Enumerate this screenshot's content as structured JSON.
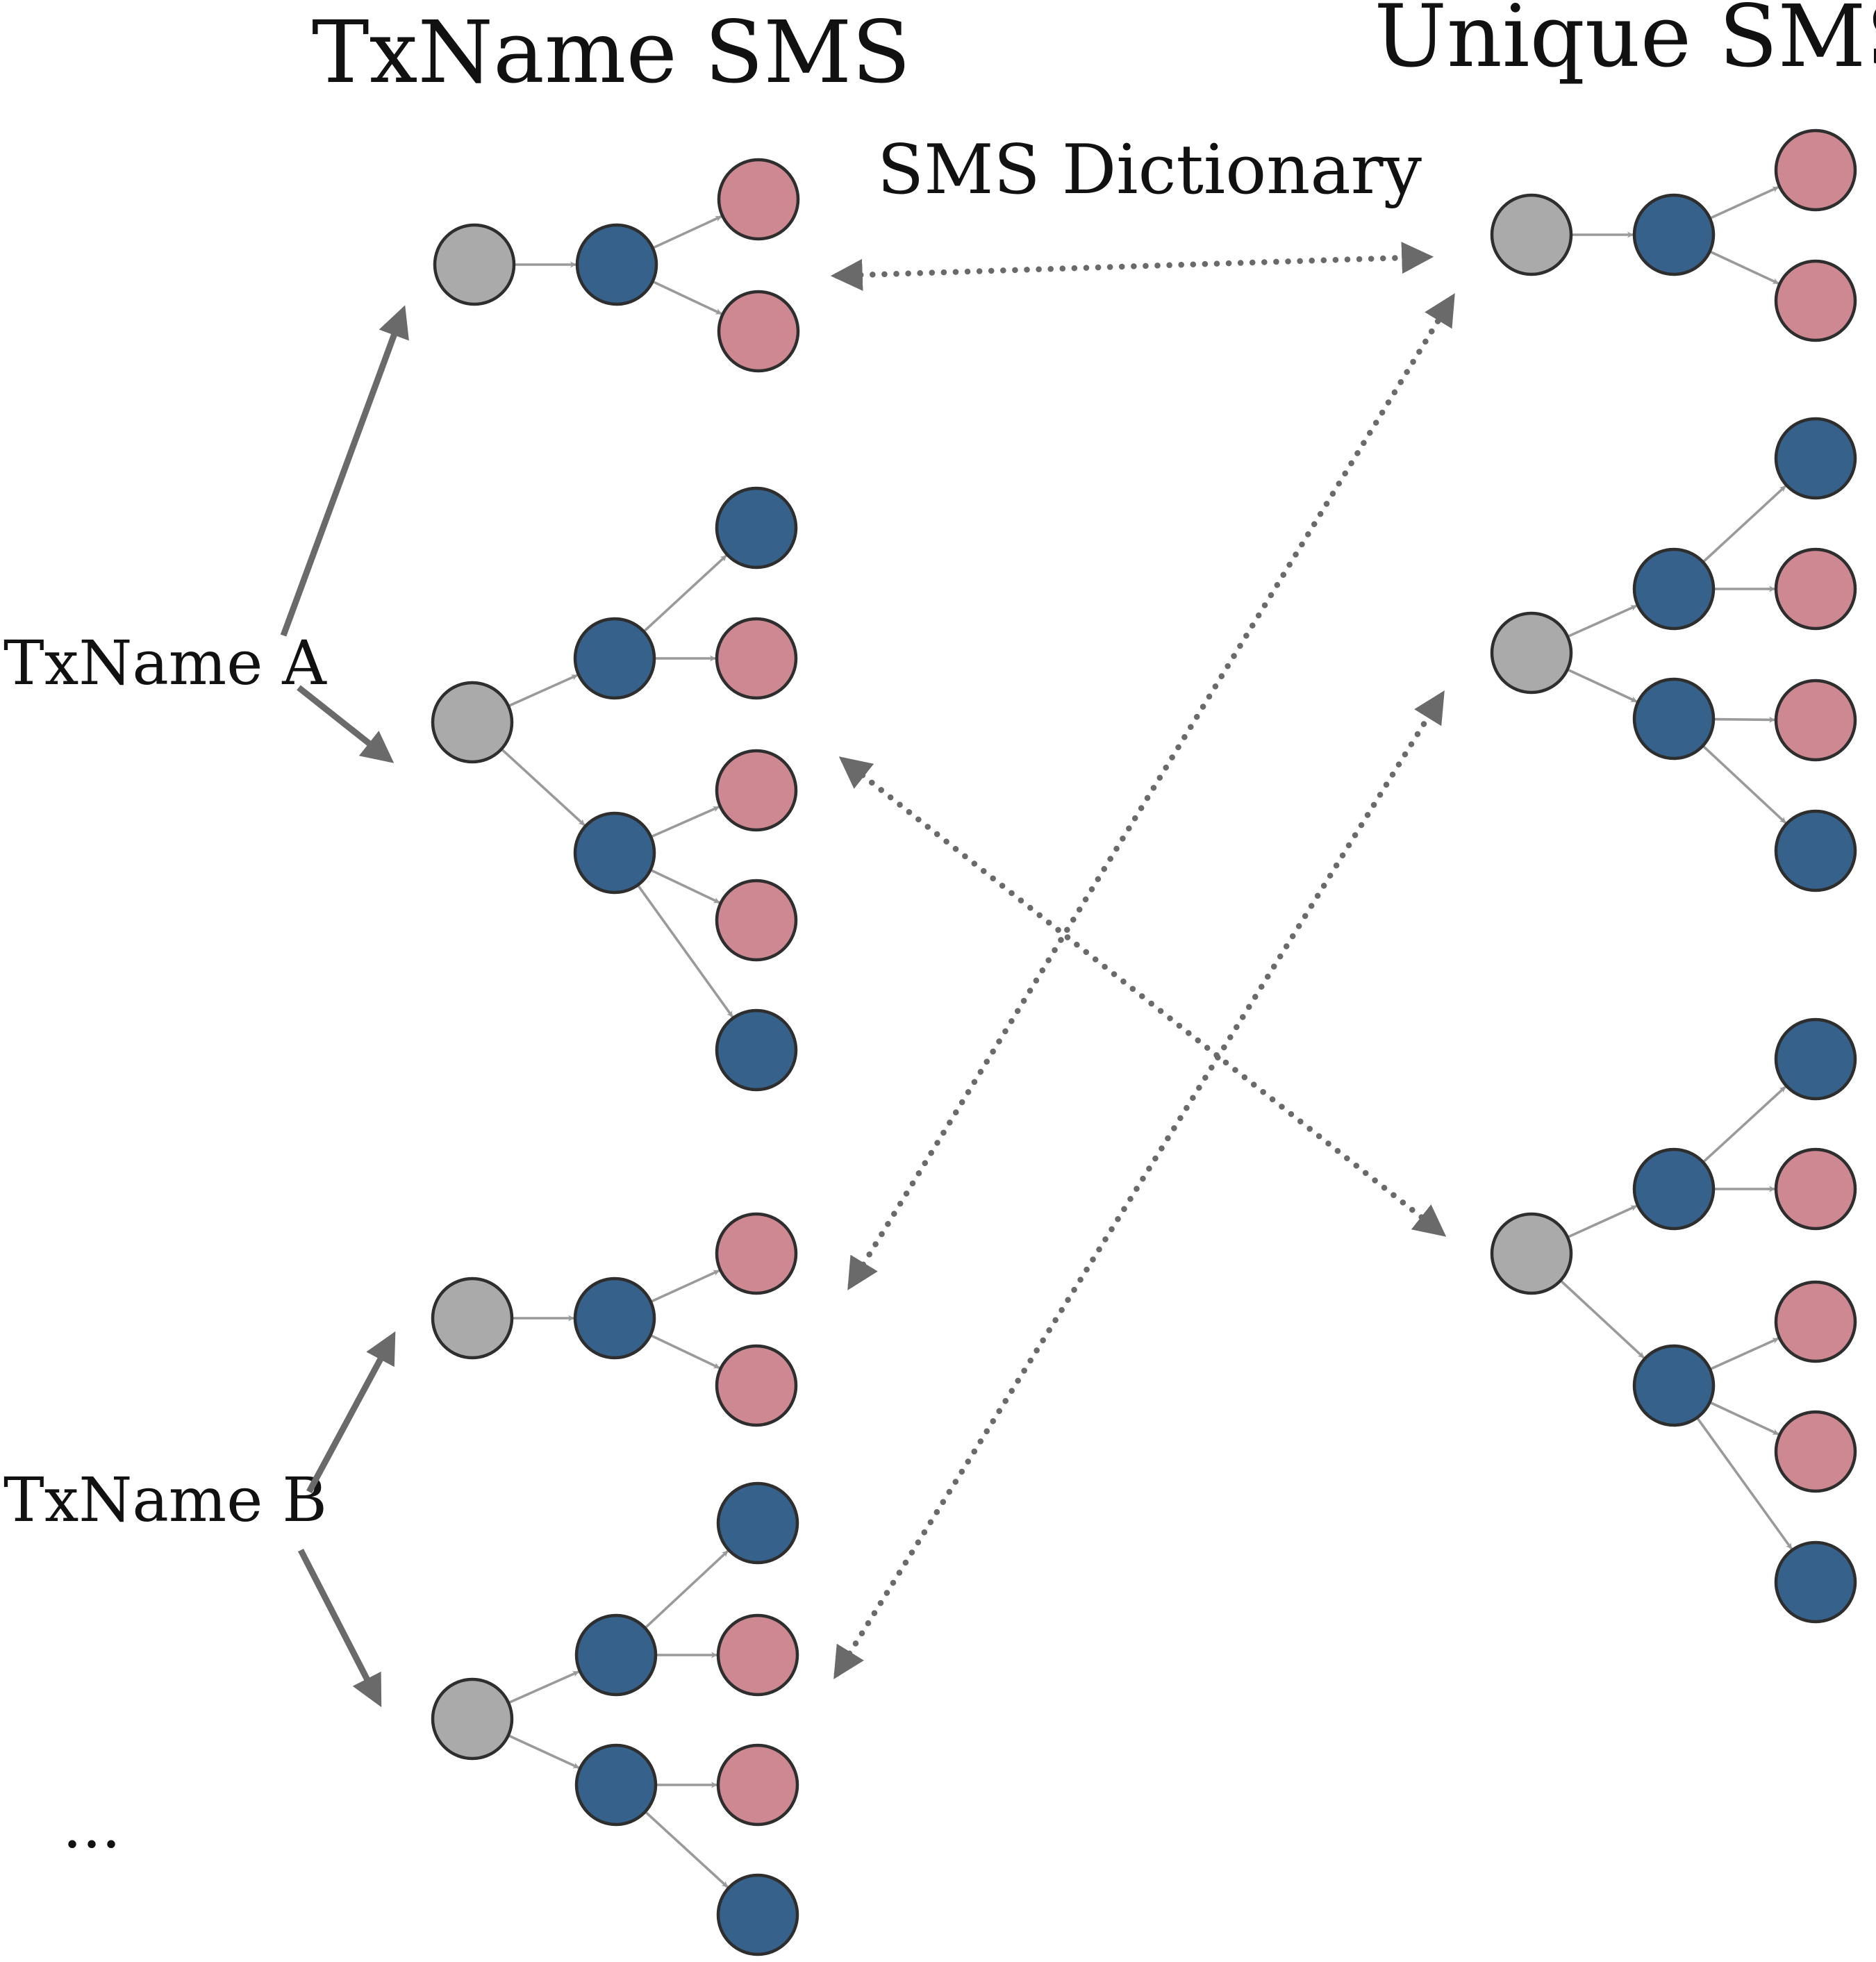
{
  "labels": {
    "txname_sms": "TxName SMS",
    "unique_sms": "Unique SMS",
    "sms_dictionary": "SMS Dictionary",
    "txname_a": "TxName A",
    "txname_b": "TxName B",
    "ellipsis": "..."
  },
  "colors": {
    "gray_node": "#aaaaaa",
    "blue_node": "#35618a",
    "pink_node": "#cd8891",
    "edge": "#9a9a9a",
    "arrow": "#6a6a6a"
  },
  "graphs": [
    {
      "name": "txname-sms-1",
      "column": "txname-sms",
      "nodes": [
        {
          "id": "root",
          "type": "gray"
        },
        {
          "id": "a",
          "type": "blue"
        },
        {
          "id": "l1",
          "type": "pink"
        },
        {
          "id": "l2",
          "type": "pink"
        }
      ],
      "edges": [
        [
          "root",
          "a"
        ],
        [
          "a",
          "l1"
        ],
        [
          "a",
          "l2"
        ]
      ]
    },
    {
      "name": "txname-sms-2",
      "column": "txname-sms",
      "nodes": [
        {
          "id": "root",
          "type": "gray"
        },
        {
          "id": "a",
          "type": "blue"
        },
        {
          "id": "b",
          "type": "blue"
        },
        {
          "id": "a1",
          "type": "blue"
        },
        {
          "id": "a2",
          "type": "pink"
        },
        {
          "id": "b1",
          "type": "pink"
        },
        {
          "id": "b2",
          "type": "pink"
        },
        {
          "id": "b3",
          "type": "blue"
        }
      ],
      "edges": [
        [
          "root",
          "a"
        ],
        [
          "root",
          "b"
        ],
        [
          "a",
          "a1"
        ],
        [
          "a",
          "a2"
        ],
        [
          "b",
          "b1"
        ],
        [
          "b",
          "b2"
        ],
        [
          "b",
          "b3"
        ]
      ]
    },
    {
      "name": "txname-sms-3",
      "column": "txname-sms",
      "nodes": [
        {
          "id": "root",
          "type": "gray"
        },
        {
          "id": "a",
          "type": "blue"
        },
        {
          "id": "l1",
          "type": "pink"
        },
        {
          "id": "l2",
          "type": "pink"
        }
      ],
      "edges": [
        [
          "root",
          "a"
        ],
        [
          "a",
          "l1"
        ],
        [
          "a",
          "l2"
        ]
      ]
    },
    {
      "name": "txname-sms-4",
      "column": "txname-sms",
      "nodes": [
        {
          "id": "root",
          "type": "gray"
        },
        {
          "id": "a",
          "type": "blue"
        },
        {
          "id": "b",
          "type": "blue"
        },
        {
          "id": "a1",
          "type": "blue"
        },
        {
          "id": "a2",
          "type": "pink"
        },
        {
          "id": "b1",
          "type": "pink"
        },
        {
          "id": "b2",
          "type": "blue"
        }
      ],
      "edges": [
        [
          "root",
          "a"
        ],
        [
          "root",
          "b"
        ],
        [
          "a",
          "a1"
        ],
        [
          "a",
          "a2"
        ],
        [
          "b",
          "b1"
        ],
        [
          "b",
          "b2"
        ]
      ]
    },
    {
      "name": "unique-sms-1",
      "column": "unique-sms",
      "nodes": [
        {
          "id": "root",
          "type": "gray"
        },
        {
          "id": "a",
          "type": "blue"
        },
        {
          "id": "l1",
          "type": "pink"
        },
        {
          "id": "l2",
          "type": "pink"
        }
      ],
      "edges": [
        [
          "root",
          "a"
        ],
        [
          "a",
          "l1"
        ],
        [
          "a",
          "l2"
        ]
      ]
    },
    {
      "name": "unique-sms-2",
      "column": "unique-sms",
      "nodes": [
        {
          "id": "root",
          "type": "gray"
        },
        {
          "id": "a",
          "type": "blue"
        },
        {
          "id": "b",
          "type": "blue"
        },
        {
          "id": "a1",
          "type": "blue"
        },
        {
          "id": "a2",
          "type": "pink"
        },
        {
          "id": "b1",
          "type": "pink"
        },
        {
          "id": "b2",
          "type": "blue"
        }
      ],
      "edges": [
        [
          "root",
          "a"
        ],
        [
          "root",
          "b"
        ],
        [
          "a",
          "a1"
        ],
        [
          "a",
          "a2"
        ],
        [
          "b",
          "b1"
        ],
        [
          "b",
          "b2"
        ]
      ]
    },
    {
      "name": "unique-sms-3",
      "column": "unique-sms",
      "nodes": [
        {
          "id": "root",
          "type": "gray"
        },
        {
          "id": "a",
          "type": "blue"
        },
        {
          "id": "b",
          "type": "blue"
        },
        {
          "id": "a1",
          "type": "blue"
        },
        {
          "id": "a2",
          "type": "pink"
        },
        {
          "id": "b1",
          "type": "pink"
        },
        {
          "id": "b2",
          "type": "pink"
        },
        {
          "id": "b3",
          "type": "blue"
        }
      ],
      "edges": [
        [
          "root",
          "a"
        ],
        [
          "root",
          "b"
        ],
        [
          "a",
          "a1"
        ],
        [
          "a",
          "a2"
        ],
        [
          "b",
          "b1"
        ],
        [
          "b",
          "b2"
        ],
        [
          "b",
          "b3"
        ]
      ]
    }
  ],
  "links": [
    {
      "name": "txname-a-link-1",
      "from": "txname_a",
      "to": "txname-sms-1",
      "style": "solid"
    },
    {
      "name": "txname-a-link-2",
      "from": "txname_a",
      "to": "txname-sms-2",
      "style": "solid"
    },
    {
      "name": "txname-b-link-1",
      "from": "txname_b",
      "to": "txname-sms-3",
      "style": "solid"
    },
    {
      "name": "txname-b-link-2",
      "from": "txname_b",
      "to": "txname-sms-4",
      "style": "solid"
    },
    {
      "name": "dictionary-link-1",
      "from": "txname-sms-1",
      "to": "unique-sms-1",
      "style": "dotted",
      "bidirectional": true
    },
    {
      "name": "dictionary-link-2",
      "from": "txname-sms-3",
      "to": "unique-sms-1",
      "style": "dotted",
      "bidirectional": true
    },
    {
      "name": "dictionary-link-3",
      "from": "txname-sms-2",
      "to": "unique-sms-3",
      "style": "dotted",
      "bidirectional": true
    },
    {
      "name": "dictionary-link-4",
      "from": "txname-sms-4",
      "to": "unique-sms-2",
      "style": "dotted",
      "bidirectional": true
    }
  ]
}
